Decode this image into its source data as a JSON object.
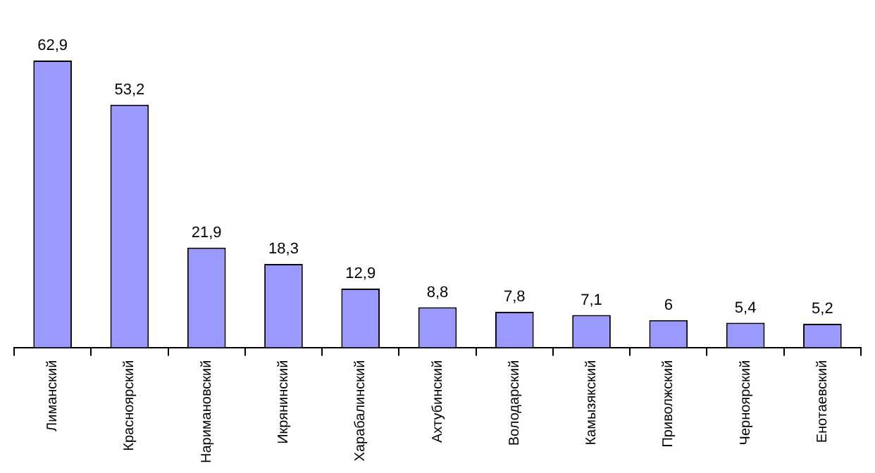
{
  "chart_data": {
    "type": "bar",
    "categories": [
      "Лиманский",
      "Красноярский",
      "Наримановский",
      "Икрянинский",
      "Харабалинский",
      "Ахтубинский",
      "Володарский",
      "Камызякский",
      "Приволжский",
      "Черноярский",
      "Енотаевский"
    ],
    "values": [
      62.9,
      53.2,
      21.9,
      18.3,
      12.9,
      8.8,
      7.8,
      7.1,
      6,
      5.4,
      5.2
    ],
    "value_labels": [
      "62,9",
      "53,2",
      "21,9",
      "18,3",
      "12,9",
      "8,8",
      "7,8",
      "7,1",
      "6",
      "5,4",
      "5,2"
    ],
    "color": "#9999ff",
    "grid": false,
    "legend": false,
    "tick_labels": "x"
  }
}
